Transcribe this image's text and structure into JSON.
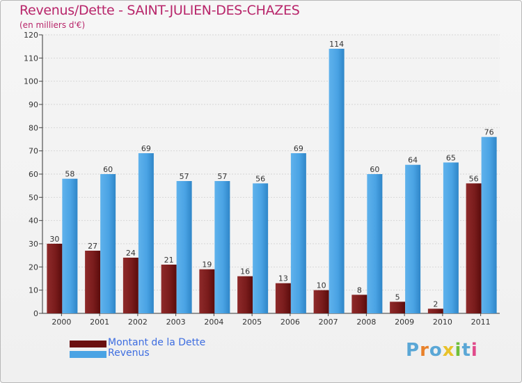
{
  "title": "Revenus/Dette - SAINT-JULIEN-DES-CHAZES",
  "subtitle": "(en milliers d'€)",
  "logo_letters": [
    "P",
    "r",
    "o",
    "x",
    "i",
    "t",
    "i"
  ],
  "colors": {
    "title": "#b8256a",
    "dette": "#7a1c1c",
    "revenus": "#4aa3e4",
    "legend_text": "#3d6de0",
    "logo": [
      "#5aa7d6",
      "#e8812a",
      "#5aa7d6",
      "#e8c22a",
      "#6fbf3a",
      "#5aa7d6",
      "#e04a8a"
    ]
  },
  "legend": [
    {
      "label": "Montant de la Dette",
      "color": "#6b1010"
    },
    {
      "label": "Revenus",
      "color": "#4aa3e4"
    }
  ],
  "chart_data": {
    "type": "bar",
    "title": "Revenus/Dette - SAINT-JULIEN-DES-CHAZES",
    "ylabel": "(en milliers d'€)",
    "xlabel": "",
    "categories": [
      "2000",
      "2001",
      "2002",
      "2003",
      "2004",
      "2005",
      "2006",
      "2007",
      "2008",
      "2009",
      "2010",
      "2011"
    ],
    "series": [
      {
        "name": "Montant de la Dette",
        "values": [
          30,
          27,
          24,
          21,
          19,
          16,
          13,
          10,
          8,
          5,
          2,
          56
        ]
      },
      {
        "name": "Revenus",
        "values": [
          58,
          60,
          69,
          57,
          57,
          56,
          69,
          114,
          60,
          64,
          65,
          76
        ]
      }
    ],
    "ylim": [
      0,
      120
    ],
    "yticks": [
      0,
      10,
      20,
      30,
      40,
      50,
      60,
      70,
      80,
      90,
      100,
      110,
      120
    ],
    "grid": true,
    "legend_position": "bottom-left"
  }
}
